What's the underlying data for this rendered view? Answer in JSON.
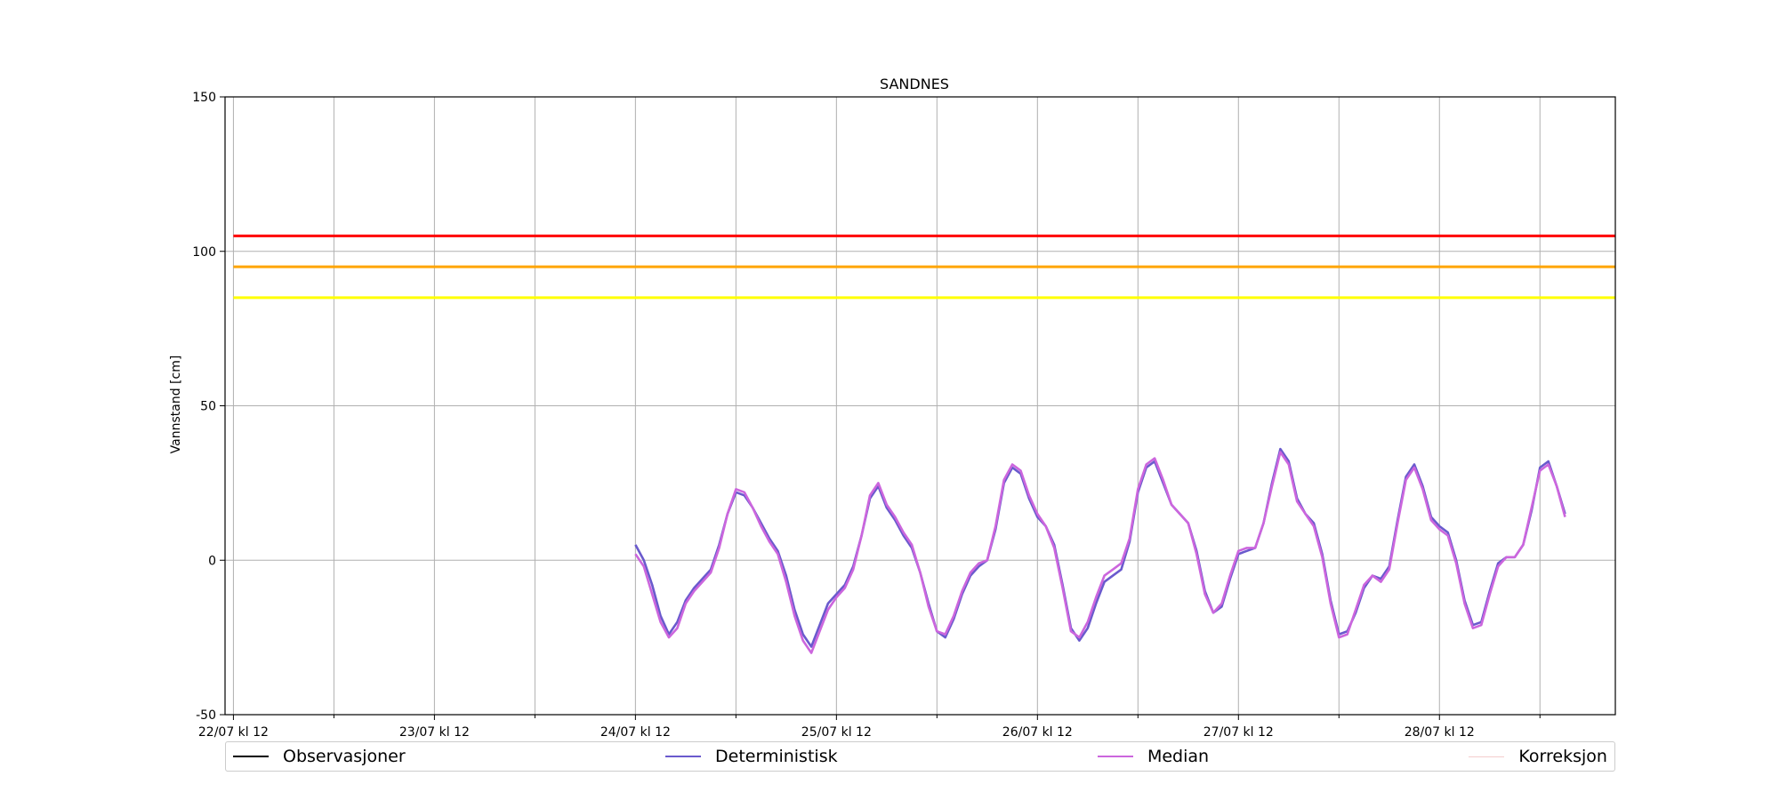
{
  "chart_data": {
    "type": "line",
    "title": "SANDNES",
    "ylabel": "Vannstand [cm]",
    "xlabel": "",
    "x_range": [
      "2025-07-22T11:00",
      "2025-07-29T09:00"
    ],
    "ylim": [
      -50,
      150
    ],
    "yticks": [
      -50,
      0,
      50,
      100,
      150
    ],
    "xticks": [
      {
        "date": "2025-07-22T12:00",
        "label": "22/07 kl 12"
      },
      {
        "date": "2025-07-23T12:00",
        "label": "23/07 kl 12"
      },
      {
        "date": "2025-07-24T12:00",
        "label": "24/07 kl 12"
      },
      {
        "date": "2025-07-25T12:00",
        "label": "25/07 kl 12"
      },
      {
        "date": "2025-07-26T12:00",
        "label": "26/07 kl 12"
      },
      {
        "date": "2025-07-27T12:00",
        "label": "27/07 kl 12"
      },
      {
        "date": "2025-07-28T12:00",
        "label": "28/07 kl 12"
      }
    ],
    "minor_xticks": [
      "2025-07-23T00:00",
      "2025-07-24T00:00",
      "2025-07-25T00:00",
      "2025-07-26T00:00",
      "2025-07-27T00:00",
      "2025-07-28T00:00",
      "2025-07-29T00:00"
    ],
    "grid": true,
    "threshold_lines": [
      {
        "value": 105,
        "color": "#ff0000"
      },
      {
        "value": 95,
        "color": "#ffa500"
      },
      {
        "value": 85,
        "color": "#ffff00"
      }
    ],
    "series": [
      {
        "name": "Observasjoner",
        "color": "#000000",
        "points": []
      },
      {
        "name": "Deterministisk",
        "color": "#6a5acd",
        "points": [
          [
            "2025-07-24T12:00",
            5
          ],
          [
            "2025-07-24T13:00",
            0
          ],
          [
            "2025-07-24T14:00",
            -8
          ],
          [
            "2025-07-24T15:00",
            -18
          ],
          [
            "2025-07-24T16:00",
            -24
          ],
          [
            "2025-07-24T17:00",
            -20
          ],
          [
            "2025-07-24T18:00",
            -13
          ],
          [
            "2025-07-24T19:00",
            -9
          ],
          [
            "2025-07-24T20:00",
            -6
          ],
          [
            "2025-07-24T21:00",
            -3
          ],
          [
            "2025-07-24T22:00",
            5
          ],
          [
            "2025-07-24T23:00",
            15
          ],
          [
            "2025-07-25T00:00",
            22
          ],
          [
            "2025-07-25T01:00",
            21
          ],
          [
            "2025-07-25T02:00",
            17
          ],
          [
            "2025-07-25T03:00",
            12
          ],
          [
            "2025-07-25T04:00",
            7
          ],
          [
            "2025-07-25T05:00",
            3
          ],
          [
            "2025-07-25T06:00",
            -5
          ],
          [
            "2025-07-25T07:00",
            -16
          ],
          [
            "2025-07-25T08:00",
            -24
          ],
          [
            "2025-07-25T09:00",
            -28
          ],
          [
            "2025-07-25T10:00",
            -21
          ],
          [
            "2025-07-25T11:00",
            -14
          ],
          [
            "2025-07-25T12:00",
            -11
          ],
          [
            "2025-07-25T13:00",
            -8
          ],
          [
            "2025-07-25T14:00",
            -2
          ],
          [
            "2025-07-25T15:00",
            8
          ],
          [
            "2025-07-25T16:00",
            20
          ],
          [
            "2025-07-25T17:00",
            24
          ],
          [
            "2025-07-25T18:00",
            17
          ],
          [
            "2025-07-25T19:00",
            13
          ],
          [
            "2025-07-25T20:00",
            8
          ],
          [
            "2025-07-25T21:00",
            4
          ],
          [
            "2025-07-25T22:00",
            -4
          ],
          [
            "2025-07-25T23:00",
            -14
          ],
          [
            "2025-07-26T00:00",
            -23
          ],
          [
            "2025-07-26T01:00",
            -25
          ],
          [
            "2025-07-26T02:00",
            -19
          ],
          [
            "2025-07-26T03:00",
            -11
          ],
          [
            "2025-07-26T04:00",
            -5
          ],
          [
            "2025-07-26T05:00",
            -2
          ],
          [
            "2025-07-26T06:00",
            0
          ],
          [
            "2025-07-26T07:00",
            10
          ],
          [
            "2025-07-26T08:00",
            25
          ],
          [
            "2025-07-26T09:00",
            30
          ],
          [
            "2025-07-26T10:00",
            28
          ],
          [
            "2025-07-26T11:00",
            20
          ],
          [
            "2025-07-26T12:00",
            14
          ],
          [
            "2025-07-26T13:00",
            11
          ],
          [
            "2025-07-26T14:00",
            5
          ],
          [
            "2025-07-26T15:00",
            -8
          ],
          [
            "2025-07-26T16:00",
            -22
          ],
          [
            "2025-07-26T17:00",
            -26
          ],
          [
            "2025-07-26T18:00",
            -22
          ],
          [
            "2025-07-26T19:00",
            -14
          ],
          [
            "2025-07-26T20:00",
            -7
          ],
          [
            "2025-07-26T21:00",
            -5
          ],
          [
            "2025-07-26T22:00",
            -3
          ],
          [
            "2025-07-26T23:00",
            6
          ],
          [
            "2025-07-27T00:00",
            22
          ],
          [
            "2025-07-27T01:00",
            30
          ],
          [
            "2025-07-27T02:00",
            32
          ],
          [
            "2025-07-27T03:00",
            25
          ],
          [
            "2025-07-27T04:00",
            18
          ],
          [
            "2025-07-27T05:00",
            15
          ],
          [
            "2025-07-27T06:00",
            12
          ],
          [
            "2025-07-27T07:00",
            3
          ],
          [
            "2025-07-27T08:00",
            -10
          ],
          [
            "2025-07-27T09:00",
            -17
          ],
          [
            "2025-07-27T10:00",
            -15
          ],
          [
            "2025-07-27T11:00",
            -6
          ],
          [
            "2025-07-27T12:00",
            2
          ],
          [
            "2025-07-27T13:00",
            3
          ],
          [
            "2025-07-27T14:00",
            4
          ],
          [
            "2025-07-27T15:00",
            12
          ],
          [
            "2025-07-27T16:00",
            25
          ],
          [
            "2025-07-27T17:00",
            36
          ],
          [
            "2025-07-27T18:00",
            32
          ],
          [
            "2025-07-27T19:00",
            20
          ],
          [
            "2025-07-27T20:00",
            15
          ],
          [
            "2025-07-27T21:00",
            12
          ],
          [
            "2025-07-27T22:00",
            2
          ],
          [
            "2025-07-27T23:00",
            -13
          ],
          [
            "2025-07-28T00:00",
            -24
          ],
          [
            "2025-07-28T01:00",
            -23
          ],
          [
            "2025-07-28T02:00",
            -17
          ],
          [
            "2025-07-28T03:00",
            -9
          ],
          [
            "2025-07-28T04:00",
            -5
          ],
          [
            "2025-07-28T05:00",
            -6
          ],
          [
            "2025-07-28T06:00",
            -2
          ],
          [
            "2025-07-28T07:00",
            13
          ],
          [
            "2025-07-28T08:00",
            27
          ],
          [
            "2025-07-28T09:00",
            31
          ],
          [
            "2025-07-28T10:00",
            24
          ],
          [
            "2025-07-28T11:00",
            14
          ],
          [
            "2025-07-28T12:00",
            11
          ],
          [
            "2025-07-28T13:00",
            9
          ],
          [
            "2025-07-28T14:00",
            0
          ],
          [
            "2025-07-28T15:00",
            -13
          ],
          [
            "2025-07-28T16:00",
            -21
          ],
          [
            "2025-07-28T17:00",
            -20
          ],
          [
            "2025-07-28T18:00",
            -10
          ],
          [
            "2025-07-28T19:00",
            -1
          ],
          [
            "2025-07-28T20:00",
            1
          ],
          [
            "2025-07-28T21:00",
            1
          ],
          [
            "2025-07-28T22:00",
            5
          ],
          [
            "2025-07-28T23:00",
            16
          ],
          [
            "2025-07-29T00:00",
            30
          ],
          [
            "2025-07-29T01:00",
            32
          ],
          [
            "2025-07-29T02:00",
            24
          ],
          [
            "2025-07-29T03:00",
            15
          ]
        ]
      },
      {
        "name": "Median",
        "color": "#cc66dd",
        "points": [
          [
            "2025-07-24T12:00",
            2
          ],
          [
            "2025-07-24T13:00",
            -2
          ],
          [
            "2025-07-24T14:00",
            -11
          ],
          [
            "2025-07-24T15:00",
            -20
          ],
          [
            "2025-07-24T16:00",
            -25
          ],
          [
            "2025-07-24T17:00",
            -22
          ],
          [
            "2025-07-24T18:00",
            -14
          ],
          [
            "2025-07-24T19:00",
            -10
          ],
          [
            "2025-07-24T20:00",
            -7
          ],
          [
            "2025-07-24T21:00",
            -4
          ],
          [
            "2025-07-24T22:00",
            4
          ],
          [
            "2025-07-24T23:00",
            15
          ],
          [
            "2025-07-25T00:00",
            23
          ],
          [
            "2025-07-25T01:00",
            22
          ],
          [
            "2025-07-25T02:00",
            17
          ],
          [
            "2025-07-25T03:00",
            11
          ],
          [
            "2025-07-25T04:00",
            6
          ],
          [
            "2025-07-25T05:00",
            2
          ],
          [
            "2025-07-25T06:00",
            -7
          ],
          [
            "2025-07-25T07:00",
            -18
          ],
          [
            "2025-07-25T08:00",
            -26
          ],
          [
            "2025-07-25T09:00",
            -30
          ],
          [
            "2025-07-25T10:00",
            -23
          ],
          [
            "2025-07-25T11:00",
            -16
          ],
          [
            "2025-07-25T12:00",
            -12
          ],
          [
            "2025-07-25T13:00",
            -9
          ],
          [
            "2025-07-25T14:00",
            -3
          ],
          [
            "2025-07-25T15:00",
            8
          ],
          [
            "2025-07-25T16:00",
            21
          ],
          [
            "2025-07-25T17:00",
            25
          ],
          [
            "2025-07-25T18:00",
            18
          ],
          [
            "2025-07-25T19:00",
            14
          ],
          [
            "2025-07-25T20:00",
            9
          ],
          [
            "2025-07-25T21:00",
            5
          ],
          [
            "2025-07-25T22:00",
            -4
          ],
          [
            "2025-07-25T23:00",
            -15
          ],
          [
            "2025-07-26T00:00",
            -23
          ],
          [
            "2025-07-26T01:00",
            -24
          ],
          [
            "2025-07-26T02:00",
            -18
          ],
          [
            "2025-07-26T03:00",
            -10
          ],
          [
            "2025-07-26T04:00",
            -4
          ],
          [
            "2025-07-26T05:00",
            -1
          ],
          [
            "2025-07-26T06:00",
            0
          ],
          [
            "2025-07-26T07:00",
            11
          ],
          [
            "2025-07-26T08:00",
            26
          ],
          [
            "2025-07-26T09:00",
            31
          ],
          [
            "2025-07-26T10:00",
            29
          ],
          [
            "2025-07-26T11:00",
            21
          ],
          [
            "2025-07-26T12:00",
            15
          ],
          [
            "2025-07-26T13:00",
            11
          ],
          [
            "2025-07-26T14:00",
            4
          ],
          [
            "2025-07-26T15:00",
            -9
          ],
          [
            "2025-07-26T16:00",
            -23
          ],
          [
            "2025-07-26T17:00",
            -25
          ],
          [
            "2025-07-26T18:00",
            -20
          ],
          [
            "2025-07-26T19:00",
            -12
          ],
          [
            "2025-07-26T20:00",
            -5
          ],
          [
            "2025-07-26T21:00",
            -3
          ],
          [
            "2025-07-26T22:00",
            -1
          ],
          [
            "2025-07-26T23:00",
            7
          ],
          [
            "2025-07-27T00:00",
            23
          ],
          [
            "2025-07-27T01:00",
            31
          ],
          [
            "2025-07-27T02:00",
            33
          ],
          [
            "2025-07-27T03:00",
            26
          ],
          [
            "2025-07-27T04:00",
            18
          ],
          [
            "2025-07-27T05:00",
            15
          ],
          [
            "2025-07-27T06:00",
            12
          ],
          [
            "2025-07-27T07:00",
            2
          ],
          [
            "2025-07-27T08:00",
            -11
          ],
          [
            "2025-07-27T09:00",
            -17
          ],
          [
            "2025-07-27T10:00",
            -14
          ],
          [
            "2025-07-27T11:00",
            -5
          ],
          [
            "2025-07-27T12:00",
            3
          ],
          [
            "2025-07-27T13:00",
            4
          ],
          [
            "2025-07-27T14:00",
            4
          ],
          [
            "2025-07-27T15:00",
            12
          ],
          [
            "2025-07-27T16:00",
            24
          ],
          [
            "2025-07-27T17:00",
            35
          ],
          [
            "2025-07-27T18:00",
            31
          ],
          [
            "2025-07-27T19:00",
            19
          ],
          [
            "2025-07-27T20:00",
            15
          ],
          [
            "2025-07-27T21:00",
            11
          ],
          [
            "2025-07-27T22:00",
            1
          ],
          [
            "2025-07-27T23:00",
            -14
          ],
          [
            "2025-07-28T00:00",
            -25
          ],
          [
            "2025-07-28T01:00",
            -24
          ],
          [
            "2025-07-28T02:00",
            -16
          ],
          [
            "2025-07-28T03:00",
            -8
          ],
          [
            "2025-07-28T04:00",
            -5
          ],
          [
            "2025-07-28T05:00",
            -7
          ],
          [
            "2025-07-28T06:00",
            -3
          ],
          [
            "2025-07-28T07:00",
            12
          ],
          [
            "2025-07-28T08:00",
            26
          ],
          [
            "2025-07-28T09:00",
            30
          ],
          [
            "2025-07-28T10:00",
            23
          ],
          [
            "2025-07-28T11:00",
            13
          ],
          [
            "2025-07-28T12:00",
            10
          ],
          [
            "2025-07-28T13:00",
            8
          ],
          [
            "2025-07-28T14:00",
            -1
          ],
          [
            "2025-07-28T15:00",
            -14
          ],
          [
            "2025-07-28T16:00",
            -22
          ],
          [
            "2025-07-28T17:00",
            -21
          ],
          [
            "2025-07-28T18:00",
            -11
          ],
          [
            "2025-07-28T19:00",
            -2
          ],
          [
            "2025-07-28T20:00",
            1
          ],
          [
            "2025-07-28T21:00",
            1
          ],
          [
            "2025-07-28T22:00",
            5
          ],
          [
            "2025-07-28T23:00",
            17
          ],
          [
            "2025-07-29T00:00",
            29
          ],
          [
            "2025-07-29T01:00",
            31
          ],
          [
            "2025-07-29T02:00",
            24
          ],
          [
            "2025-07-29T03:00",
            14
          ]
        ]
      },
      {
        "name": "Korreksjon",
        "color": "#f4cccc",
        "points": []
      }
    ],
    "legend_placement": "bottom"
  }
}
